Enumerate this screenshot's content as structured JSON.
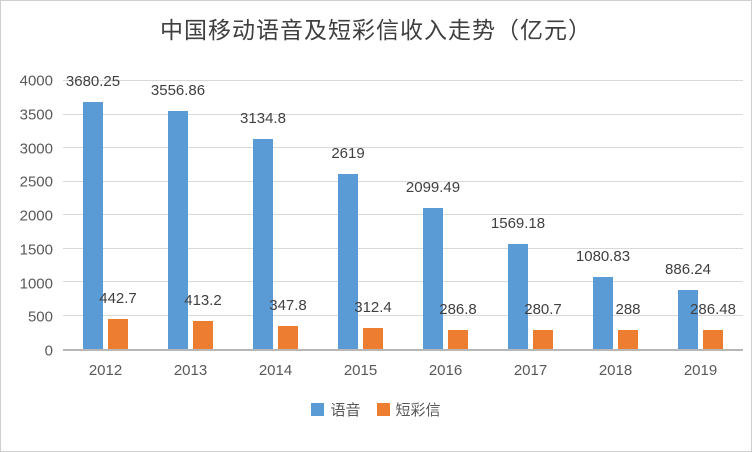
{
  "title": "中国移动语音及短彩信收入走势（亿元）",
  "chart_data": {
    "type": "bar",
    "title": "中国移动语音及短彩信收入走势（亿元）",
    "categories": [
      "2012",
      "2013",
      "2014",
      "2015",
      "2016",
      "2017",
      "2018",
      "2019"
    ],
    "series": [
      {
        "key": "voice",
        "name": "语音",
        "color": "#5B9BD5",
        "values": [
          3680.25,
          3556.86,
          3134.8,
          2619,
          2099.49,
          1569.18,
          1080.83,
          886.24
        ],
        "labels": [
          "3680.25",
          "3556.86",
          "3134.8",
          "2619",
          "2099.49",
          "1569.18",
          "1080.83",
          "886.24"
        ]
      },
      {
        "key": "sms",
        "name": "短彩信",
        "color": "#ED7D31",
        "values": [
          442.7,
          413.2,
          347.8,
          312.4,
          286.8,
          280.7,
          288,
          286.48
        ],
        "labels": [
          "442.7",
          "413.2",
          "347.8",
          "312.4",
          "286.8",
          "280.7",
          "288",
          "286.48"
        ]
      }
    ],
    "xlabel": "",
    "ylabel": "",
    "ylim": [
      0,
      4000
    ],
    "ytick_step": 500,
    "yticks": [
      "4000",
      "3500",
      "3000",
      "2500",
      "2000",
      "1500",
      "1000",
      "500",
      "0"
    ],
    "grid": true,
    "legend_position": "bottom"
  },
  "colors": {
    "grid": "#d9d9d9",
    "axis": "#b7b7b7",
    "tick_text": "#595959",
    "data_label": "#404040",
    "title_text": "#3f3f3f",
    "frame_border": "#cfcfcf"
  }
}
